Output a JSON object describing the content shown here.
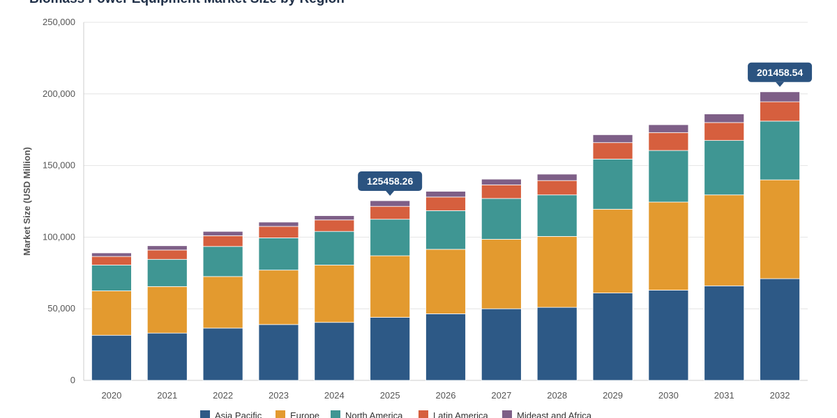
{
  "chart_data": {
    "type": "bar",
    "stacked": true,
    "title": "Biomass Power Equipment Market Size by Region",
    "xlabel": "",
    "ylabel": "Market Size (USD Million)",
    "ylim": [
      0,
      250000
    ],
    "yticks": [
      "0",
      "50,000",
      "100,000",
      "150,000",
      "200,000",
      "250,000"
    ],
    "grid": true,
    "legend_position": "bottom",
    "categories": [
      "2020",
      "2021",
      "2022",
      "2023",
      "2024",
      "2025",
      "2026",
      "2027",
      "2028",
      "2029",
      "2030",
      "2031",
      "2032"
    ],
    "series": [
      {
        "name": "Asia Pacific",
        "color": "#2d5986",
        "values": [
          31500,
          33000,
          36500,
          39000,
          40500,
          44000,
          46500,
          50000,
          51000,
          61000,
          63000,
          66000,
          71000
        ]
      },
      {
        "name": "Europe",
        "color": "#e39a2f",
        "values": [
          31000,
          32500,
          36000,
          38000,
          40000,
          43000,
          45000,
          48500,
          49500,
          58500,
          61500,
          63500,
          69000
        ]
      },
      {
        "name": "North America",
        "color": "#3f9693",
        "values": [
          18000,
          19000,
          21000,
          22500,
          23500,
          25500,
          27000,
          28500,
          29000,
          35000,
          36000,
          38000,
          41000
        ]
      },
      {
        "name": "Latin America",
        "color": "#d65f3e",
        "values": [
          6000,
          6500,
          7500,
          8000,
          8000,
          9000,
          9500,
          9500,
          10000,
          11500,
          12500,
          12500,
          13500
        ]
      },
      {
        "name": "Mideast and Africa",
        "color": "#7e5f87",
        "values": [
          2500,
          3000,
          3000,
          3000,
          3000,
          3958.26,
          4000,
          4000,
          4500,
          5500,
          5500,
          6000,
          6958.54
        ]
      }
    ],
    "annotations": [
      {
        "category": "2025",
        "text": "125458.26",
        "value": 125458.26
      },
      {
        "category": "2032",
        "text": "201458.54",
        "value": 201458.54
      }
    ],
    "annotation_color": "#2b5380"
  }
}
